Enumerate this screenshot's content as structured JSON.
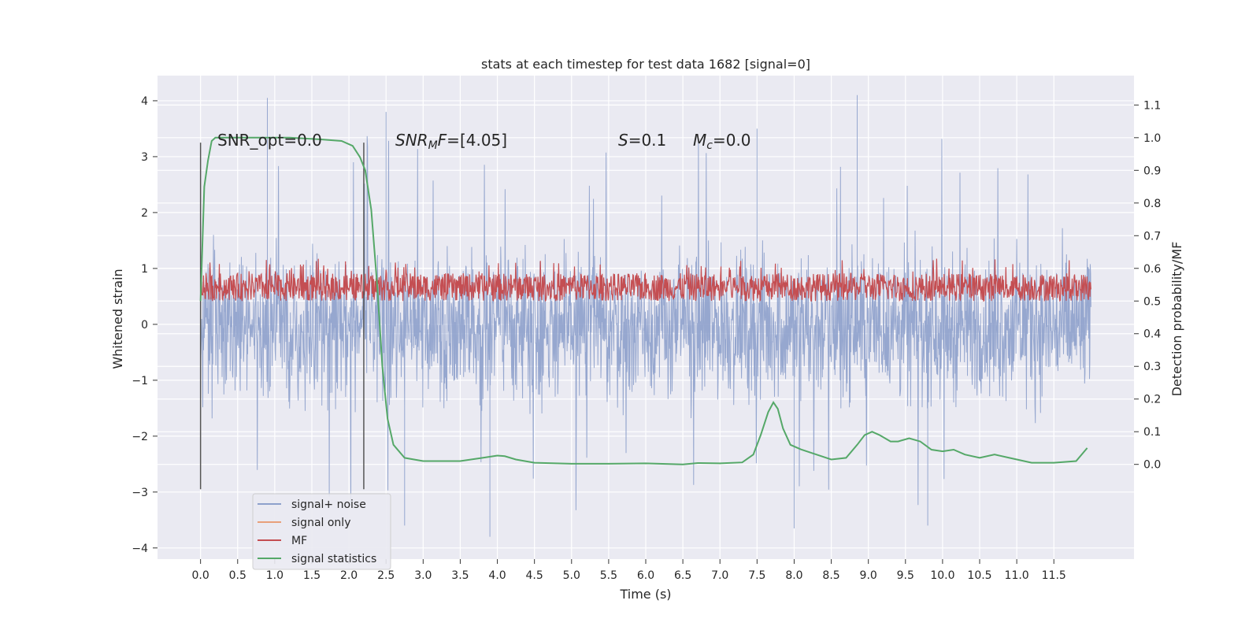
{
  "chart_data": {
    "type": "line",
    "title": "stats at each timestep for test data 1682 [signal=0]",
    "xlabel": "Time (s)",
    "ylabel_left": "Whitened strain",
    "ylabel_right": "Detection probability/MF",
    "xlim": [
      -0.58,
      12.58
    ],
    "ylim_left": [
      -4.2,
      4.45
    ],
    "ylim_right": [
      -0.29,
      1.19
    ],
    "x_ticks": [
      "0.0",
      "0.5",
      "1.0",
      "1.5",
      "2.0",
      "2.5",
      "3.0",
      "3.5",
      "4.0",
      "4.5",
      "5.0",
      "5.5",
      "6.0",
      "6.5",
      "7.0",
      "7.5",
      "8.0",
      "8.5",
      "9.0",
      "9.5",
      "10.0",
      "10.5",
      "11.0",
      "11.5"
    ],
    "y_ticks_left": [
      "4",
      "3",
      "2",
      "1",
      "0",
      "−1",
      "−2",
      "−3",
      "−4"
    ],
    "y_ticks_right": [
      "1.1",
      "1.0",
      "0.9",
      "0.8",
      "0.7",
      "0.6",
      "0.5",
      "0.4",
      "0.3",
      "0.2",
      "0.1",
      "0.0"
    ],
    "grid": true,
    "legend_position": "lower-left",
    "series": [
      {
        "name": "signal+ noise",
        "color": "#8da0cb",
        "kind": "noise",
        "band_left": [
          -1.5,
          1.4
        ],
        "peaks_left": [
          [
            0.9,
            4.05
          ],
          [
            8.85,
            4.1
          ],
          [
            2.5,
            3.8
          ],
          [
            7.5,
            3.5
          ],
          [
            3.9,
            -3.8
          ],
          [
            8.0,
            -3.65
          ],
          [
            2.75,
            -3.6
          ],
          [
            9.8,
            -3.6
          ]
        ],
        "range_x": [
          0,
          12
        ]
      },
      {
        "name": "signal only",
        "color": "#e8a07a",
        "kind": "flat",
        "values_left": [],
        "range_x": [
          0,
          12
        ]
      },
      {
        "name": "MF",
        "color": "#c44e52",
        "kind": "noise",
        "band_right": [
          0.5,
          0.58
        ],
        "range_x": [
          0,
          12
        ]
      },
      {
        "name": "signal statistics",
        "color": "#55a868",
        "kind": "line",
        "x": [
          0.0,
          0.05,
          0.1,
          0.15,
          0.2,
          0.4,
          0.8,
          1.2,
          1.6,
          1.9,
          2.05,
          2.15,
          2.22,
          2.3,
          2.38,
          2.45,
          2.52,
          2.6,
          2.75,
          3.0,
          3.5,
          3.8,
          4.0,
          4.1,
          4.25,
          4.5,
          5.0,
          5.5,
          6.0,
          6.5,
          6.7,
          7.0,
          7.3,
          7.45,
          7.55,
          7.65,
          7.72,
          7.78,
          7.85,
          7.95,
          8.1,
          8.3,
          8.5,
          8.7,
          8.85,
          8.95,
          9.05,
          9.15,
          9.3,
          9.4,
          9.55,
          9.7,
          9.85,
          10.0,
          10.15,
          10.3,
          10.5,
          10.7,
          10.9,
          11.2,
          11.5,
          11.8,
          11.95
        ],
        "y": [
          0.5,
          0.85,
          0.93,
          0.99,
          1.0,
          1.0,
          1.0,
          1.0,
          0.995,
          0.99,
          0.975,
          0.94,
          0.9,
          0.78,
          0.55,
          0.3,
          0.14,
          0.06,
          0.02,
          0.01,
          0.01,
          0.02,
          0.027,
          0.025,
          0.015,
          0.005,
          0.002,
          0.002,
          0.003,
          0.0,
          0.004,
          0.003,
          0.006,
          0.03,
          0.09,
          0.16,
          0.19,
          0.17,
          0.11,
          0.06,
          0.045,
          0.03,
          0.015,
          0.02,
          0.06,
          0.09,
          0.1,
          0.09,
          0.07,
          0.07,
          0.08,
          0.07,
          0.045,
          0.04,
          0.045,
          0.03,
          0.02,
          0.03,
          0.02,
          0.005,
          0.005,
          0.01,
          0.05
        ]
      }
    ],
    "vlines": [
      {
        "x": 0.0,
        "y_range_left": [
          -2.95,
          3.25
        ],
        "color": "#555555"
      },
      {
        "x": 2.2,
        "y_range_left": [
          -2.95,
          3.25
        ],
        "color": "#555555"
      }
    ]
  },
  "annotations": {
    "snr_opt": "SNR_opt=0.0",
    "snr_mf": "[4.05]",
    "s_value": "=0.1",
    "mc_value": "=0.0"
  }
}
